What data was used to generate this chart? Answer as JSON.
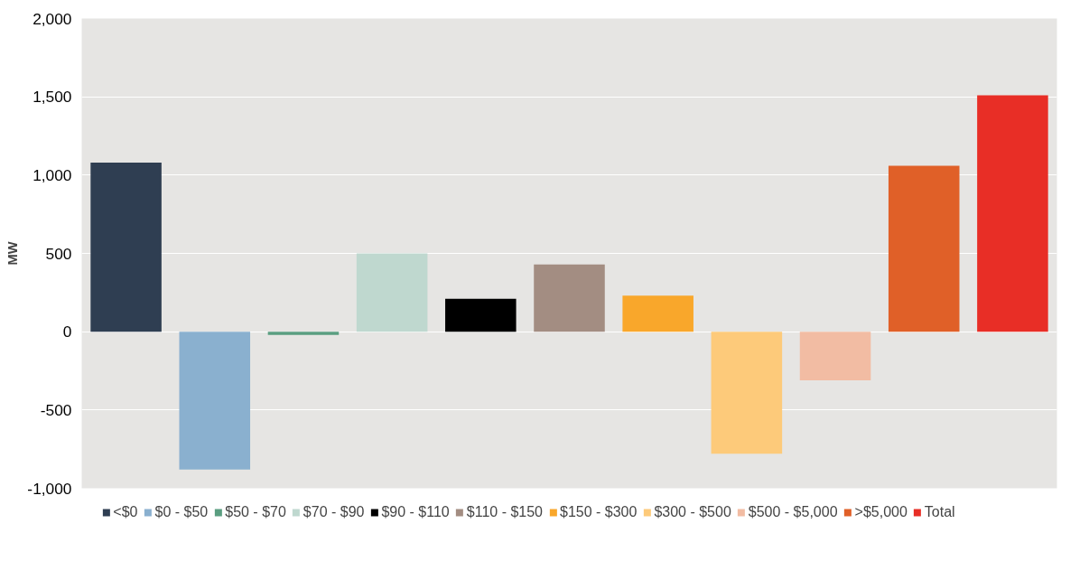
{
  "chart_data": {
    "type": "bar",
    "ylabel": "MW",
    "categories": [
      null,
      null,
      null,
      null,
      null,
      null,
      null,
      null,
      null,
      null,
      null
    ],
    "series": [
      {
        "name": "<$0",
        "color": "#2f3e52",
        "values": [
          1080,
          null,
          null,
          null,
          null,
          null,
          null,
          null,
          null,
          null,
          null
        ]
      },
      {
        "name": "$0 - $50",
        "color": "#8ab0cf",
        "values": [
          null,
          -880,
          null,
          null,
          null,
          null,
          null,
          null,
          null,
          null,
          null
        ]
      },
      {
        "name": "$50 - $70",
        "color": "#5a9e80",
        "values": [
          null,
          null,
          -20,
          null,
          null,
          null,
          null,
          null,
          null,
          null,
          null
        ]
      },
      {
        "name": "$70 - $90",
        "color": "#bfd8cf",
        "values": [
          null,
          null,
          null,
          500,
          null,
          null,
          null,
          null,
          null,
          null,
          null
        ]
      },
      {
        "name": "$90 - $110",
        "color": "#000000",
        "values": [
          null,
          null,
          null,
          null,
          210,
          null,
          null,
          null,
          null,
          null,
          null
        ]
      },
      {
        "name": "$110 - $150",
        "color": "#a38d82",
        "values": [
          null,
          null,
          null,
          null,
          null,
          430,
          null,
          null,
          null,
          null,
          null
        ]
      },
      {
        "name": "$150 - $300",
        "color": "#f9a72b",
        "values": [
          null,
          null,
          null,
          null,
          null,
          null,
          230,
          null,
          null,
          null,
          null
        ]
      },
      {
        "name": "$300 - $500",
        "color": "#fdca7a",
        "values": [
          null,
          null,
          null,
          null,
          null,
          null,
          null,
          -780,
          null,
          null,
          null
        ]
      },
      {
        "name": "$500 - $5,000",
        "color": "#f2bca3",
        "values": [
          null,
          null,
          null,
          null,
          null,
          null,
          null,
          null,
          -310,
          null,
          null
        ]
      },
      {
        "name": ">$5,000",
        "color": "#e06028",
        "values": [
          null,
          null,
          null,
          null,
          null,
          null,
          null,
          null,
          null,
          1060,
          null
        ]
      },
      {
        "name": "Total",
        "color": "#e82e26",
        "values": [
          null,
          null,
          null,
          null,
          null,
          null,
          null,
          null,
          null,
          null,
          1510
        ]
      }
    ],
    "ylim": [
      -1000,
      2000
    ],
    "yticks": [
      {
        "value": -1000,
        "label": "-1,000"
      },
      -500,
      0,
      500,
      {
        "value": 1000,
        "label": "1,000"
      },
      {
        "value": 1500,
        "label": "1,500"
      },
      {
        "value": 2000,
        "label": "2,000"
      }
    ],
    "grid": "y",
    "legend": "bottom",
    "tick_labels": "y"
  }
}
